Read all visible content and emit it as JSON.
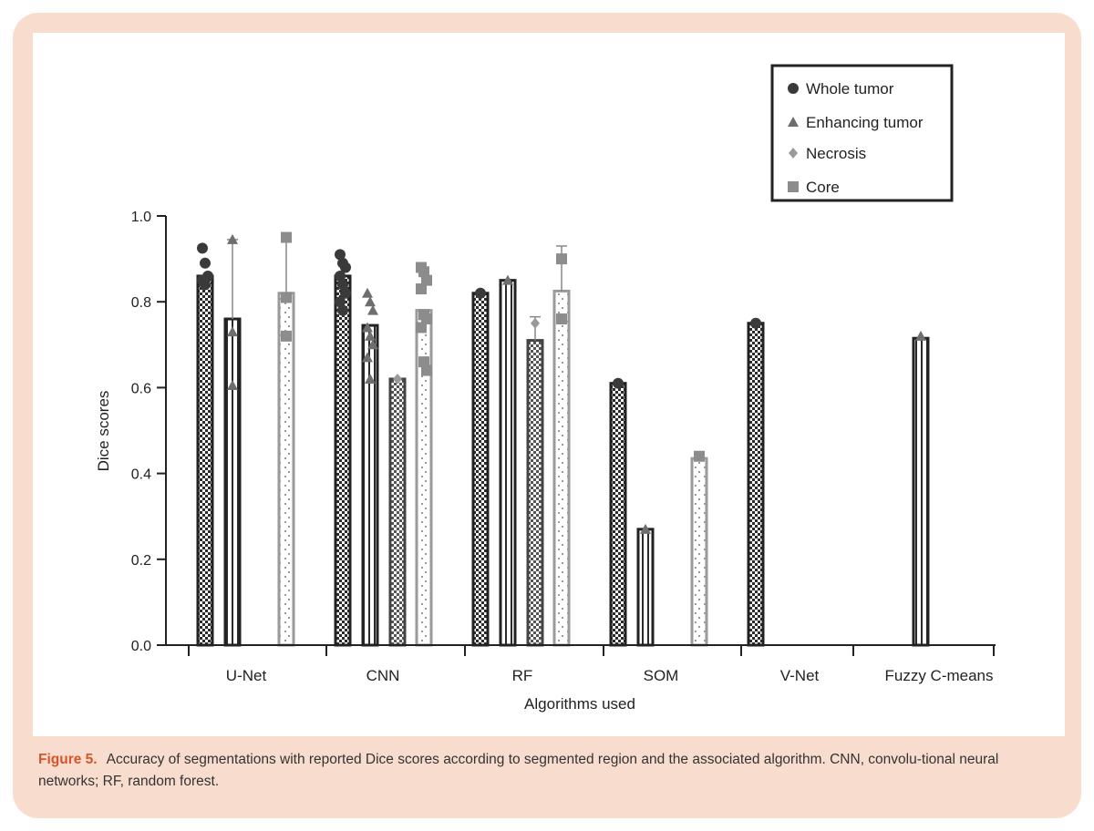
{
  "caption": {
    "label": "Figure 5.",
    "text": "Accuracy of segmentations with reported Dice scores according to segmented region and the associated algorithm. CNN, convolu-tional neural networks; RF, random forest."
  },
  "colors": {
    "frame": "#f8dccd",
    "caption_label": "#d9532a",
    "whole_tumor": "#3a3a3a",
    "enhancing_tumor": "#6e6e6e",
    "necrosis": "#9a9a9a",
    "core": "#8c8c8c"
  },
  "chart_data": {
    "type": "bar",
    "title": "",
    "xlabel": "Algorithms used",
    "ylabel": "Dice scores",
    "ylim": [
      0,
      1.0
    ],
    "yticks": [
      "0.0",
      "0.2",
      "0.4",
      "0.6",
      "0.8",
      "1.0"
    ],
    "categories": [
      "U-Net",
      "CNN",
      "RF",
      "SOM",
      "V-Net",
      "Fuzzy C-means"
    ],
    "legend_position": "top-right",
    "series": [
      {
        "name": "Whole tumor",
        "marker": "circle",
        "pattern": "checker",
        "values": [
          0.86,
          0.86,
          0.82,
          0.61,
          0.75,
          null
        ],
        "points": [
          [
            0.925,
            0.89,
            0.86,
            0.85,
            0.84
          ],
          [
            0.91,
            0.89,
            0.88,
            0.86,
            0.84,
            0.82,
            0.8,
            0.78
          ],
          [
            0.82
          ],
          [
            0.61
          ],
          [
            0.75
          ],
          []
        ]
      },
      {
        "name": "Enhancing tumor",
        "marker": "triangle",
        "pattern": "stripes",
        "values": [
          0.76,
          0.745,
          0.85,
          0.27,
          null,
          0.715
        ],
        "points": [
          [
            0.945,
            0.73,
            0.605
          ],
          [
            0.82,
            0.8,
            0.78,
            0.74,
            0.72,
            0.7,
            0.67,
            0.62
          ],
          [
            0.85
          ],
          [
            0.27
          ],
          [],
          [
            0.72
          ]
        ],
        "errors": [
          [
            0.76,
            0.945
          ],
          null,
          null,
          null,
          null,
          null
        ]
      },
      {
        "name": "Necrosis",
        "marker": "diamond",
        "pattern": "checker",
        "values": [
          null,
          0.62,
          0.71,
          null,
          null,
          null
        ],
        "points": [
          [],
          [
            0.62
          ],
          [
            0.75
          ],
          [],
          [],
          []
        ],
        "errors": [
          null,
          null,
          [
            0.71,
            0.765
          ],
          null,
          null,
          null
        ]
      },
      {
        "name": "Core",
        "marker": "square",
        "pattern": "dots",
        "values": [
          0.82,
          0.78,
          0.825,
          0.435,
          null,
          null
        ],
        "points": [
          [
            0.95,
            0.81,
            0.72
          ],
          [
            0.88,
            0.87,
            0.85,
            0.83,
            0.77,
            0.76,
            0.74,
            0.66,
            0.64
          ],
          [
            0.9,
            0.76
          ],
          [
            0.44
          ],
          [],
          []
        ],
        "errors": [
          [
            0.82,
            0.95
          ],
          null,
          [
            0.825,
            0.93
          ],
          null,
          null,
          null
        ]
      }
    ]
  }
}
